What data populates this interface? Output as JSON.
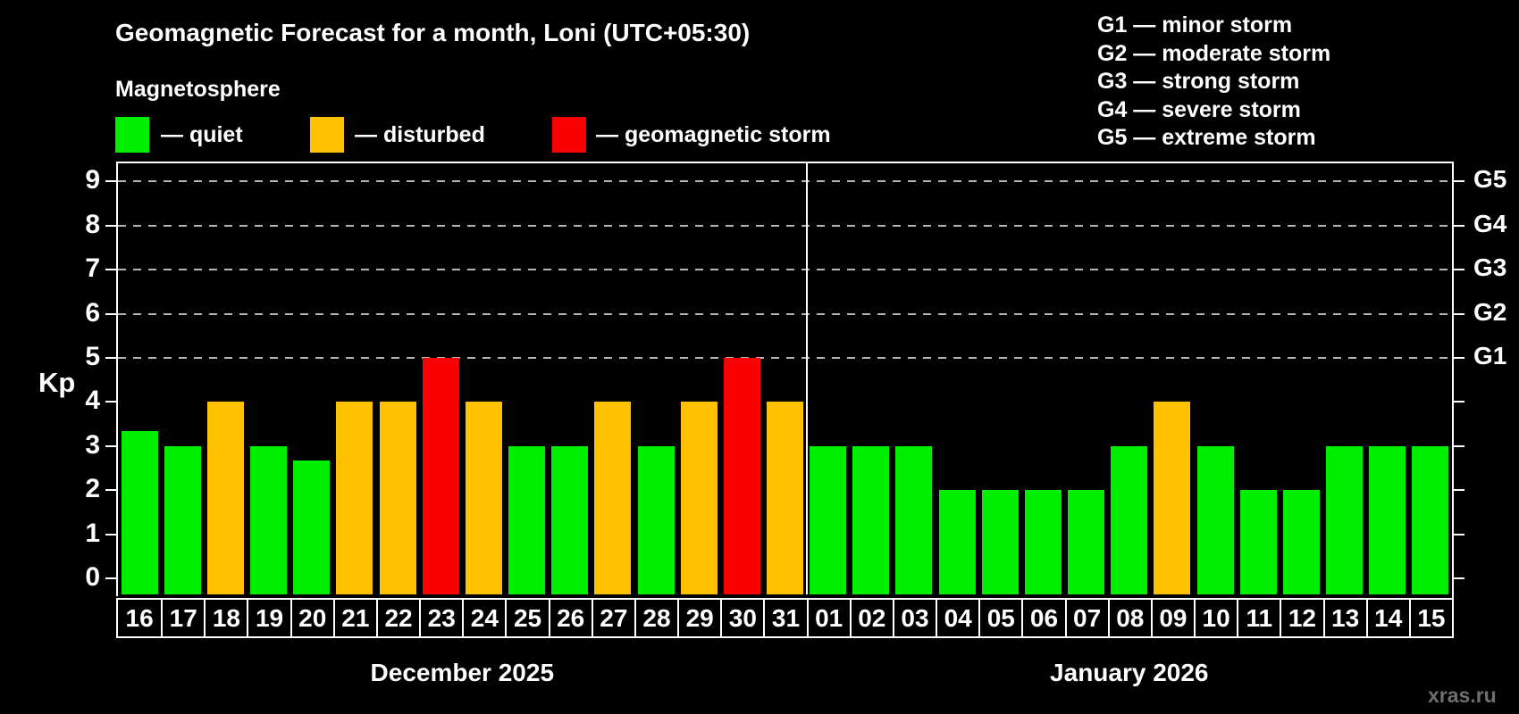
{
  "title": "Geomagnetic Forecast for a month, Loni (UTC+05:30)",
  "watermark": "xras.ru",
  "legend": {
    "title": "Magnetosphere",
    "items": [
      {
        "status": "quiet",
        "label": "— quiet"
      },
      {
        "status": "disturbed",
        "label": "— disturbed"
      },
      {
        "status": "storm",
        "label": "— geomagnetic storm"
      }
    ]
  },
  "g_legend": [
    "G1 — minor storm",
    "G2 — moderate storm",
    "G3 — strong storm",
    "G4 — severe storm",
    "G5 — extreme storm"
  ],
  "colors": {
    "quiet": "#00ee00",
    "disturbed": "#ffc100",
    "storm": "#fb0000",
    "axis": "#ffffff",
    "grid": "#b5b5b5",
    "background": "#000000",
    "watermark": "#6f6f6f"
  },
  "chart_data": {
    "type": "bar",
    "ylabel": "Kp",
    "ylim": [
      0,
      9.4
    ],
    "y_ticks": [
      0,
      1,
      2,
      3,
      4,
      5,
      6,
      7,
      8,
      9
    ],
    "grid_levels": [
      5,
      6,
      7,
      8,
      9
    ],
    "right_axis_labels": {
      "5": "G1",
      "6": "G2",
      "7": "G3",
      "8": "G4",
      "9": "G5"
    },
    "legend_position": "top",
    "months": [
      {
        "label": "December 2025",
        "days": [
          {
            "day": "16",
            "kp": 3.33,
            "status": "quiet"
          },
          {
            "day": "17",
            "kp": 3,
            "status": "quiet"
          },
          {
            "day": "18",
            "kp": 4,
            "status": "disturbed"
          },
          {
            "day": "19",
            "kp": 3,
            "status": "quiet"
          },
          {
            "day": "20",
            "kp": 2.67,
            "status": "quiet"
          },
          {
            "day": "21",
            "kp": 4,
            "status": "disturbed"
          },
          {
            "day": "22",
            "kp": 4,
            "status": "disturbed"
          },
          {
            "day": "23",
            "kp": 5,
            "status": "storm"
          },
          {
            "day": "24",
            "kp": 4,
            "status": "disturbed"
          },
          {
            "day": "25",
            "kp": 3,
            "status": "quiet"
          },
          {
            "day": "26",
            "kp": 3,
            "status": "quiet"
          },
          {
            "day": "27",
            "kp": 4,
            "status": "disturbed"
          },
          {
            "day": "28",
            "kp": 3,
            "status": "quiet"
          },
          {
            "day": "29",
            "kp": 4,
            "status": "disturbed"
          },
          {
            "day": "30",
            "kp": 5,
            "status": "storm"
          },
          {
            "day": "31",
            "kp": 4,
            "status": "disturbed"
          }
        ]
      },
      {
        "label": "January 2026",
        "days": [
          {
            "day": "01",
            "kp": 3,
            "status": "quiet"
          },
          {
            "day": "02",
            "kp": 3,
            "status": "quiet"
          },
          {
            "day": "03",
            "kp": 3,
            "status": "quiet"
          },
          {
            "day": "04",
            "kp": 2,
            "status": "quiet"
          },
          {
            "day": "05",
            "kp": 2,
            "status": "quiet"
          },
          {
            "day": "06",
            "kp": 2,
            "status": "quiet"
          },
          {
            "day": "07",
            "kp": 2,
            "status": "quiet"
          },
          {
            "day": "08",
            "kp": 3,
            "status": "quiet"
          },
          {
            "day": "09",
            "kp": 4,
            "status": "disturbed"
          },
          {
            "day": "10",
            "kp": 3,
            "status": "quiet"
          },
          {
            "day": "11",
            "kp": 2,
            "status": "quiet"
          },
          {
            "day": "12",
            "kp": 2,
            "status": "quiet"
          },
          {
            "day": "13",
            "kp": 3,
            "status": "quiet"
          },
          {
            "day": "14",
            "kp": 3,
            "status": "quiet"
          },
          {
            "day": "15",
            "kp": 3,
            "status": "quiet"
          }
        ]
      }
    ]
  }
}
